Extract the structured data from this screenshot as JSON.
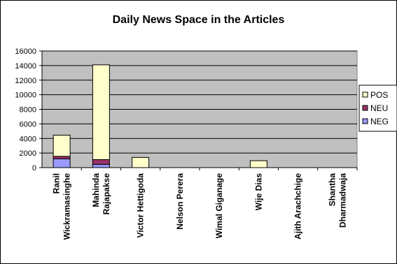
{
  "chart_data": {
    "type": "bar",
    "stacked": true,
    "title": "Daily News Space in the Articles",
    "xlabel": "",
    "ylabel": "",
    "ylim": [
      0,
      16000
    ],
    "yticks": [
      0,
      2000,
      4000,
      6000,
      8000,
      10000,
      12000,
      14000,
      16000
    ],
    "grid": true,
    "legend_position": "right",
    "categories": [
      [
        "Ranil",
        "Wickramasinghe"
      ],
      [
        "Mahinda",
        "Rajapakse"
      ],
      [
        "Victor Hettigoda"
      ],
      [
        "Nelson Perera"
      ],
      [
        "Wimal Giganage"
      ],
      [
        "Wije Dias"
      ],
      [
        "Ajith Arachchige"
      ],
      [
        "Shantha",
        "Dharmadwaja"
      ]
    ],
    "series": [
      {
        "name": "NEG",
        "color": "#9999ff",
        "values": [
          1200,
          450,
          0,
          0,
          0,
          0,
          0,
          0
        ]
      },
      {
        "name": "NEU",
        "color": "#993366",
        "values": [
          350,
          650,
          0,
          0,
          0,
          0,
          0,
          0
        ]
      },
      {
        "name": "POS",
        "color": "#ffffcc",
        "values": [
          2900,
          13000,
          1400,
          0,
          0,
          950,
          0,
          0
        ]
      }
    ],
    "legend_order": [
      "POS",
      "NEU",
      "NEG"
    ],
    "plot_background": "#c0c0c0"
  }
}
